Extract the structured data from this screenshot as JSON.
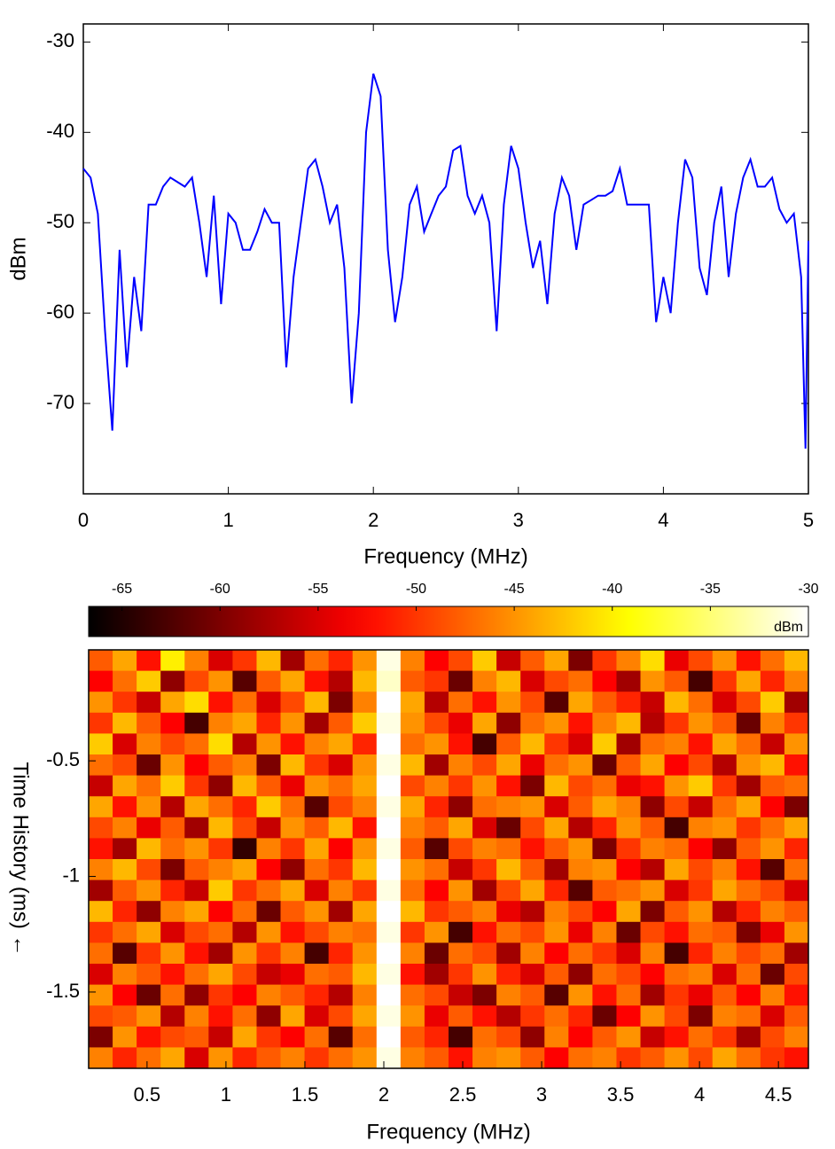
{
  "chart_data": [
    {
      "type": "line",
      "xlabel": "Frequency (MHz)",
      "ylabel": "dBm",
      "xlim": [
        0,
        5
      ],
      "ylim": [
        -80,
        -28
      ],
      "xticks": [
        0,
        1,
        2,
        3,
        4,
        5
      ],
      "yticks": [
        -30,
        -40,
        -50,
        -60,
        -70
      ],
      "color": "#0000ff",
      "x": [
        0,
        0.05,
        0.1,
        0.15,
        0.2,
        0.25,
        0.3,
        0.35,
        0.4,
        0.45,
        0.5,
        0.55,
        0.6,
        0.65,
        0.7,
        0.75,
        0.8,
        0.85,
        0.9,
        0.95,
        1,
        1.05,
        1.1,
        1.15,
        1.2,
        1.25,
        1.3,
        1.35,
        1.4,
        1.45,
        1.5,
        1.55,
        1.6,
        1.65,
        1.7,
        1.75,
        1.8,
        1.85,
        1.9,
        1.95,
        2,
        2.05,
        2.1,
        2.15,
        2.2,
        2.25,
        2.3,
        2.35,
        2.4,
        2.45,
        2.5,
        2.55,
        2.6,
        2.65,
        2.7,
        2.75,
        2.8,
        2.85,
        2.9,
        2.95,
        3,
        3.05,
        3.1,
        3.15,
        3.2,
        3.25,
        3.3,
        3.35,
        3.4,
        3.45,
        3.5,
        3.55,
        3.6,
        3.65,
        3.7,
        3.75,
        3.8,
        3.85,
        3.9,
        3.95,
        4,
        4.05,
        4.1,
        4.15,
        4.2,
        4.25,
        4.3,
        4.35,
        4.4,
        4.45,
        4.5,
        4.55,
        4.6,
        4.65,
        4.7,
        4.75,
        4.8,
        4.85,
        4.9,
        4.95,
        4.98,
        5
      ],
      "values": [
        -44,
        -45,
        -49,
        -62,
        -73,
        -53,
        -66,
        -56,
        -62,
        -48,
        -48,
        -46,
        -45,
        -45.5,
        -46,
        -45,
        -50,
        -56,
        -47,
        -59,
        -49,
        -50,
        -53,
        -53,
        -51,
        -48.5,
        -50,
        -50,
        -66,
        -56,
        -50,
        -44,
        -43,
        -46,
        -50,
        -48,
        -55,
        -70,
        -60,
        -40,
        -33.5,
        -36,
        -53,
        -61,
        -56,
        -48,
        -46,
        -51,
        -49,
        -47,
        -46,
        -42,
        -41.5,
        -47,
        -49,
        -47,
        -50,
        -62,
        -48,
        -41.5,
        -44,
        -50,
        -55,
        -52,
        -59,
        -49,
        -45,
        -47,
        -53,
        -48,
        -47.5,
        -47,
        -47,
        -46.5,
        -44,
        -48,
        -48,
        -48,
        -48,
        -61,
        -56,
        -60,
        -50,
        -43,
        -45,
        -55,
        -58,
        -50,
        -46,
        -56,
        -49,
        -45,
        -43,
        -46,
        -46,
        -45,
        -48.5,
        -50,
        -49,
        -56,
        -75,
        -52
      ]
    },
    {
      "type": "heatmap",
      "xlabel": "Frequency (MHz)",
      "ylabel": "Time History (ms) ←",
      "xlim": [
        0.13,
        4.69
      ],
      "ylim": [
        -1.83,
        -0.02
      ],
      "xticks": [
        0.5,
        1,
        1.5,
        2,
        2.5,
        3,
        3.5,
        4,
        4.5
      ],
      "yticks": [
        -0.5,
        -1,
        -1.5
      ],
      "clim": [
        -66.7,
        -30
      ],
      "cticks": [
        -65,
        -60,
        -55,
        -50,
        -45,
        -40,
        -35,
        -30
      ],
      "clabel": "dBm",
      "z": [
        [
          -48,
          -44,
          -52,
          -40,
          -46,
          -55,
          -50,
          -43,
          -58,
          -47,
          -51,
          -45,
          -31,
          -46,
          -53,
          -49,
          -42,
          -56,
          -48,
          -44,
          -60,
          -50,
          -46,
          -41,
          -54,
          -49,
          -45,
          -52,
          -47,
          -43
        ],
        [
          -53,
          -47,
          -42,
          -59,
          -49,
          -45,
          -62,
          -48,
          -44,
          -52,
          -57,
          -43,
          -32,
          -48,
          -50,
          -61,
          -46,
          -43,
          -55,
          -49,
          -47,
          -53,
          -58,
          -45,
          -48,
          -63,
          -50,
          -44,
          -51,
          -46
        ],
        [
          -45,
          -50,
          -56,
          -44,
          -41,
          -52,
          -47,
          -55,
          -49,
          -43,
          -60,
          -46,
          -30,
          -44,
          -57,
          -47,
          -52,
          -45,
          -49,
          -62,
          -44,
          -48,
          -51,
          -56,
          -43,
          -47,
          -55,
          -49,
          -42,
          -58
        ],
        [
          -50,
          -43,
          -48,
          -53,
          -63,
          -46,
          -44,
          -51,
          -45,
          -58,
          -48,
          -42,
          -31,
          -45,
          -49,
          -54,
          -44,
          -59,
          -47,
          -45,
          -52,
          -46,
          -43,
          -57,
          -50,
          -45,
          -48,
          -61,
          -46,
          -50
        ],
        [
          -42,
          -55,
          -46,
          -49,
          -47,
          -41,
          -57,
          -45,
          -52,
          -46,
          -44,
          -51,
          -30,
          -47,
          -45,
          -52,
          -63,
          -48,
          -43,
          -50,
          -55,
          -42,
          -58,
          -47,
          -46,
          -52,
          -44,
          -47,
          -56,
          -45
        ],
        [
          -47,
          -49,
          -61,
          -45,
          -53,
          -48,
          -46,
          -60,
          -43,
          -50,
          -55,
          -45,
          -31,
          -43,
          -58,
          -46,
          -49,
          -44,
          -54,
          -47,
          -45,
          -61,
          -48,
          -44,
          -53,
          -49,
          -57,
          -45,
          -43,
          -52
        ],
        [
          -56,
          -44,
          -47,
          -42,
          -50,
          -59,
          -43,
          -48,
          -54,
          -45,
          -47,
          -44,
          -30,
          -49,
          -46,
          -50,
          -45,
          -52,
          -60,
          -43,
          -49,
          -47,
          -54,
          -52,
          -45,
          -42,
          -50,
          -58,
          -48,
          -47
        ],
        [
          -44,
          -52,
          -45,
          -57,
          -44,
          -47,
          -51,
          -42,
          -47,
          -62,
          -49,
          -46,
          -31,
          -44,
          -51,
          -59,
          -47,
          -46,
          -45,
          -55,
          -48,
          -44,
          -46,
          -59,
          -49,
          -56,
          -47,
          -44,
          -53,
          -60
        ],
        [
          -49,
          -46,
          -54,
          -48,
          -58,
          -43,
          -49,
          -56,
          -45,
          -48,
          -43,
          -52,
          -30,
          -46,
          -48,
          -44,
          -55,
          -61,
          -49,
          -44,
          -57,
          -51,
          -45,
          -48,
          -63,
          -46,
          -45,
          -50,
          -47,
          -44
        ],
        [
          -52,
          -58,
          -43,
          -47,
          -45,
          -50,
          -64,
          -46,
          -50,
          -44,
          -53,
          -45,
          -31,
          -48,
          -62,
          -49,
          -46,
          -47,
          -52,
          -48,
          -45,
          -60,
          -50,
          -46,
          -47,
          -53,
          -59,
          -48,
          -45,
          -51
        ],
        [
          -46,
          -43,
          -49,
          -60,
          -48,
          -46,
          -44,
          -53,
          -59,
          -47,
          -50,
          -43,
          -30,
          -45,
          -47,
          -56,
          -50,
          -43,
          -48,
          -58,
          -46,
          -45,
          -53,
          -57,
          -44,
          -49,
          -46,
          -52,
          -62,
          -47
        ],
        [
          -58,
          -48,
          -45,
          -51,
          -56,
          -42,
          -50,
          -47,
          -44,
          -55,
          -46,
          -50,
          -31,
          -47,
          -53,
          -45,
          -58,
          -49,
          -44,
          -51,
          -62,
          -48,
          -47,
          -45,
          -55,
          -50,
          -44,
          -47,
          -49,
          -55
        ],
        [
          -43,
          -51,
          -59,
          -46,
          -44,
          -53,
          -47,
          -61,
          -48,
          -45,
          -58,
          -44,
          -30,
          -43,
          -50,
          -48,
          -46,
          -54,
          -57,
          -46,
          -49,
          -53,
          -44,
          -60,
          -48,
          -45,
          -57,
          -51,
          -46,
          -48
        ],
        [
          -50,
          -47,
          -44,
          -55,
          -49,
          -47,
          -57,
          -45,
          -52,
          -49,
          -46,
          -47,
          -31,
          -50,
          -45,
          -63,
          -52,
          -47,
          -49,
          -45,
          -54,
          -46,
          -61,
          -49,
          -52,
          -47,
          -48,
          -60,
          -54,
          -45
        ],
        [
          -47,
          -62,
          -50,
          -45,
          -52,
          -58,
          -45,
          -50,
          -46,
          -63,
          -51,
          -45,
          -30,
          -46,
          -61,
          -47,
          -49,
          -58,
          -46,
          -53,
          -47,
          -50,
          -55,
          -46,
          -63,
          -51,
          -46,
          -49,
          -47,
          -58
        ],
        [
          -55,
          -46,
          -48,
          -52,
          -47,
          -44,
          -49,
          -56,
          -54,
          -47,
          -48,
          -43,
          -31,
          -52,
          -58,
          -50,
          -45,
          -51,
          -55,
          -48,
          -59,
          -47,
          -49,
          -53,
          -47,
          -46,
          -55,
          -47,
          -61,
          -49
        ],
        [
          -45,
          -53,
          -61,
          -47,
          -59,
          -50,
          -53,
          -46,
          -48,
          -51,
          -57,
          -46,
          -30,
          -47,
          -49,
          -56,
          -60,
          -46,
          -48,
          -62,
          -45,
          -52,
          -47,
          -58,
          -50,
          -54,
          -48,
          -53,
          -46,
          -52
        ],
        [
          -49,
          -48,
          -45,
          -57,
          -46,
          -52,
          -47,
          -59,
          -44,
          -55,
          -49,
          -44,
          -31,
          -45,
          -54,
          -48,
          -52,
          -57,
          -50,
          -47,
          -51,
          -61,
          -53,
          -45,
          -49,
          -60,
          -46,
          -47,
          -55,
          -48
        ],
        [
          -60,
          -45,
          -52,
          -49,
          -48,
          -56,
          -44,
          -50,
          -53,
          -47,
          -62,
          -47,
          -30,
          -48,
          -51,
          -63,
          -47,
          -49,
          -59,
          -46,
          -53,
          -48,
          -45,
          -56,
          -52,
          -47,
          -50,
          -58,
          -49,
          -46
        ],
        [
          -46,
          -51,
          -47,
          -44,
          -55,
          -45,
          -51,
          -48,
          -46,
          -50,
          -47,
          -45,
          -31,
          -46,
          -48,
          -52,
          -46,
          -45,
          -48,
          -53,
          -47,
          -46,
          -50,
          -48,
          -45,
          -49,
          -44,
          -47,
          -50,
          -52
        ]
      ]
    }
  ]
}
